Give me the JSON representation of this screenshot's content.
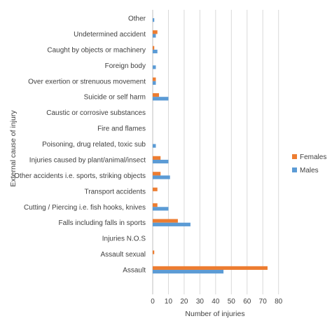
{
  "chart_data": {
    "type": "bar",
    "orientation": "horizontal",
    "title": "",
    "xlabel": "Number of injuries",
    "ylabel": "External cause of injury",
    "xlim": [
      0,
      80
    ],
    "xticks": [
      0,
      10,
      20,
      30,
      40,
      50,
      60,
      70,
      80
    ],
    "grid": "vertical",
    "legend_position": "right",
    "categories": [
      "Other",
      "Undetermined accident",
      "Caught by objects or machinery",
      "Foreign body",
      "Over exertion or strenuous movement",
      "Suicide or self harm",
      "Caustic or corrosive substances",
      "Fire and flames",
      "Poisoning, drug related, toxic sub",
      "Injuries caused by plant/animal/insect",
      "Other accidents i.e. sports, striking objects",
      "Transport accidents",
      "Cutting / Piercing i.e. fish hooks, knives",
      "Falls including falls in sports",
      "Injuries N.O.S",
      "Assault sexual",
      "Assault"
    ],
    "series": [
      {
        "name": "Females",
        "color": "#ED7D31",
        "values": [
          0,
          3,
          1,
          0,
          2,
          4,
          0,
          0,
          0,
          5,
          5,
          3,
          3,
          16,
          0,
          1,
          73
        ]
      },
      {
        "name": "Males",
        "color": "#5B9BD5",
        "values": [
          1,
          2,
          3,
          2,
          2,
          10,
          0,
          0,
          2,
          10,
          11,
          0,
          10,
          24,
          0,
          0,
          45
        ]
      }
    ]
  }
}
